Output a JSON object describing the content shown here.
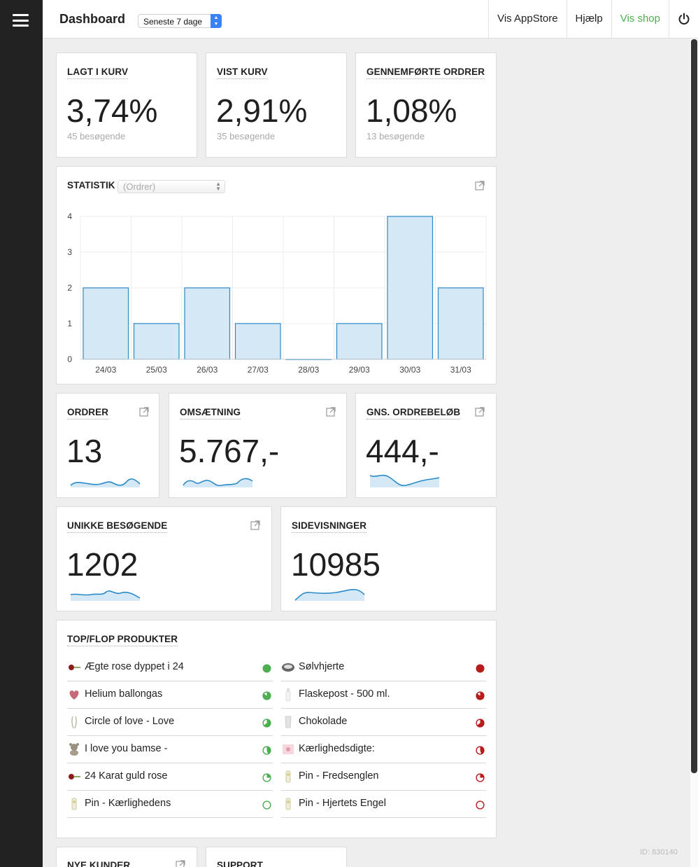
{
  "topbar": {
    "title": "Dashboard",
    "range": "Seneste 7 dage",
    "nav": [
      "Vis AppStore",
      "Hjælp",
      "Vis shop"
    ]
  },
  "kpis": [
    {
      "title": "LAGT I KURV",
      "value": "3,74%",
      "sub": "45 besøgende"
    },
    {
      "title": "VIST KURV",
      "value": "2,91%",
      "sub": "35 besøgende"
    },
    {
      "title": "GENNEMFØRTE ORDRER",
      "value": "1,08%",
      "sub": "13 besøgende"
    }
  ],
  "statistik": {
    "title": "STATISTIK",
    "select": "(Ordrer)"
  },
  "chart_data": {
    "type": "bar",
    "categories": [
      "24/03",
      "25/03",
      "26/03",
      "27/03",
      "28/03",
      "29/03",
      "30/03",
      "31/03"
    ],
    "values": [
      2,
      1,
      2,
      1,
      0,
      1,
      4,
      2
    ],
    "title": "",
    "xlabel": "",
    "ylabel": "",
    "ylim": [
      0,
      4
    ],
    "yticks": [
      "0",
      "1",
      "2",
      "3",
      "4"
    ],
    "grid": true,
    "bar_fill": "#d4e8f6",
    "bar_stroke": "#2a8ac8"
  },
  "metrics": [
    {
      "title": "ORDRER",
      "value": "13"
    },
    {
      "title": "OMSÆTNING",
      "value": "5.767,-"
    },
    {
      "title": "GNS. ORDREBELØB",
      "value": "444,-"
    },
    {
      "title": "UNIKKE BESØGENDE",
      "value": "1202"
    },
    {
      "title": "SIDEVISNINGER",
      "value": "10985"
    }
  ],
  "topflop": {
    "title": "TOP/FLOP PRODUKTER",
    "top": [
      {
        "name": "Ægte rose dyppet i 24",
        "icon": "rose-icon",
        "fraction": 1.0
      },
      {
        "name": "Helium ballongas",
        "icon": "balloon-icon",
        "fraction": 0.85
      },
      {
        "name": "Circle of love - Love",
        "icon": "ribbon-icon",
        "fraction": 0.65
      },
      {
        "name": "I love you bamse -",
        "icon": "teddy-icon",
        "fraction": 0.45
      },
      {
        "name": "24 Karat guld rose",
        "icon": "rose-icon",
        "fraction": 0.25
      },
      {
        "name": "Pin - Kærlighedens",
        "icon": "pin-icon",
        "fraction": 0.0
      }
    ],
    "flop": [
      {
        "name": "Sølvhjerte",
        "icon": "heart-icon",
        "fraction": 1.0
      },
      {
        "name": "Flaskepost - 500 ml.",
        "icon": "bottle-icon",
        "fraction": 0.85
      },
      {
        "name": "Chokolade",
        "icon": "chocolate-icon",
        "fraction": 0.65
      },
      {
        "name": "Kærlighedsdigte:",
        "icon": "poem-icon",
        "fraction": 0.45
      },
      {
        "name": "Pin - Fredsenglen",
        "icon": "pin-icon",
        "fraction": 0.25
      },
      {
        "name": "Pin - Hjertets Engel",
        "icon": "pin-icon",
        "fraction": 0.0
      }
    ],
    "top_color": "#4caf50",
    "flop_color": "#b71c1c"
  },
  "bottom": {
    "new_customers": "NYE KUNDER",
    "support": "SUPPORT"
  },
  "footer": {
    "id": "ID: 830140"
  }
}
